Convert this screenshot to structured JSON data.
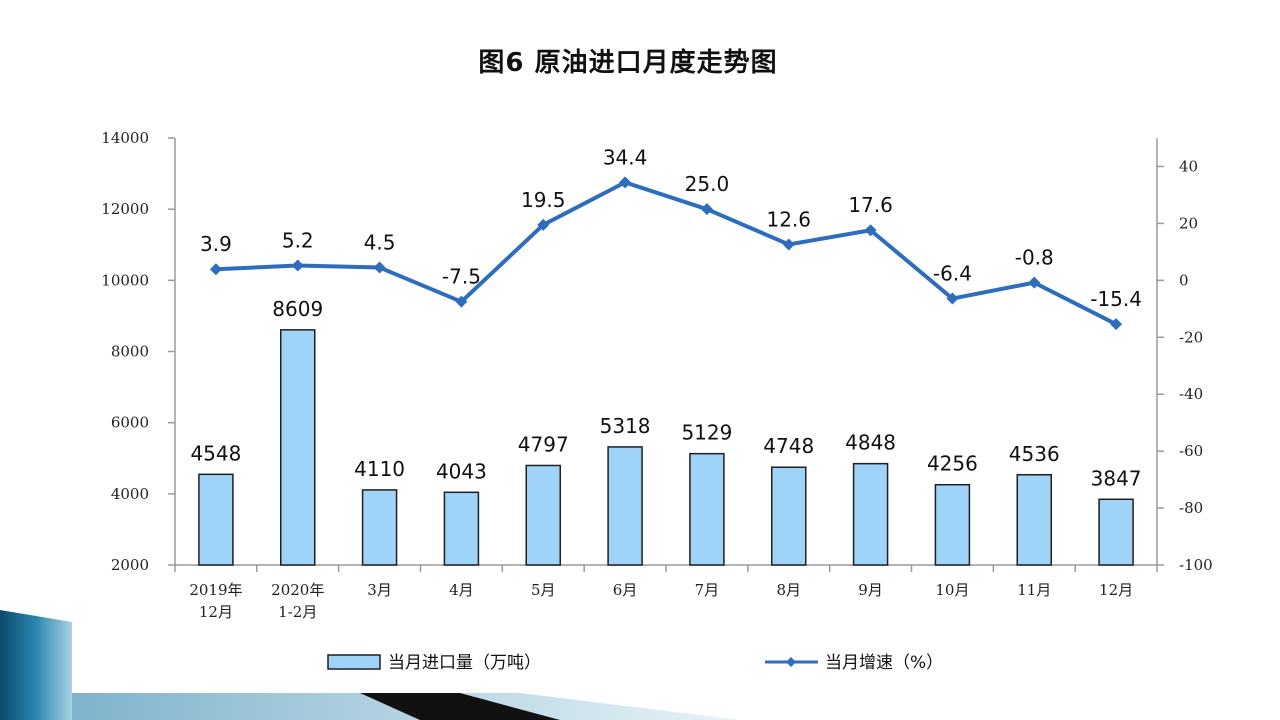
{
  "title": "图6  原油进口月度走势图",
  "colors": {
    "bar_fill": "#9fd3f7",
    "bar_stroke": "#1f1f1f",
    "line": "#2e6dbd",
    "axis": "#9a9a9a",
    "deco_dark": "#0d4f74",
    "deco_light": "#9cc6dc"
  },
  "chart_data": {
    "type": "bar",
    "categories": [
      [
        "2019年",
        "12月"
      ],
      [
        "2020年",
        "1-2月"
      ],
      [
        "3月"
      ],
      [
        "4月"
      ],
      [
        "5月"
      ],
      [
        "6月"
      ],
      [
        "7月"
      ],
      [
        "8月"
      ],
      [
        "9月"
      ],
      [
        "10月"
      ],
      [
        "11月"
      ],
      [
        "12月"
      ]
    ],
    "series": [
      {
        "name": "当月进口量（万吨）",
        "type": "bar",
        "axis": "left",
        "values": [
          4548,
          8609,
          4110,
          4043,
          4797,
          5318,
          5129,
          4748,
          4848,
          4256,
          4536,
          3847
        ],
        "labels": [
          "4548",
          "8609",
          "4110",
          "4043",
          "4797",
          "5318",
          "5129",
          "4748",
          "4848",
          "4256",
          "4536",
          "3847"
        ]
      },
      {
        "name": "当月增速（%）",
        "type": "line",
        "axis": "right",
        "values": [
          3.9,
          5.2,
          4.5,
          -7.5,
          19.5,
          34.4,
          25.0,
          12.6,
          17.6,
          -6.4,
          -0.8,
          -15.4
        ],
        "labels": [
          "3.9",
          "5.2",
          "4.5",
          "-7.5",
          "19.5",
          "34.4",
          "25.0",
          "12.6",
          "17.6",
          "-6.4",
          "-0.8",
          "-15.4"
        ]
      }
    ],
    "y_left": {
      "ylim": [
        2000,
        14000
      ],
      "ticks": [
        2000,
        4000,
        6000,
        8000,
        10000,
        12000,
        14000
      ],
      "tick_labels": [
        "2000",
        "4000",
        "6000",
        "8000",
        "10000",
        "12000",
        "14000"
      ]
    },
    "y_right": {
      "ylim": [
        -100,
        50
      ],
      "ticks": [
        -100,
        -80,
        -60,
        -40,
        -20,
        0,
        20,
        40
      ],
      "tick_labels": [
        "-100",
        "-80",
        "-60",
        "-40",
        "-20",
        "0",
        "20",
        "40"
      ]
    },
    "grid": false,
    "legend_position": "bottom"
  }
}
